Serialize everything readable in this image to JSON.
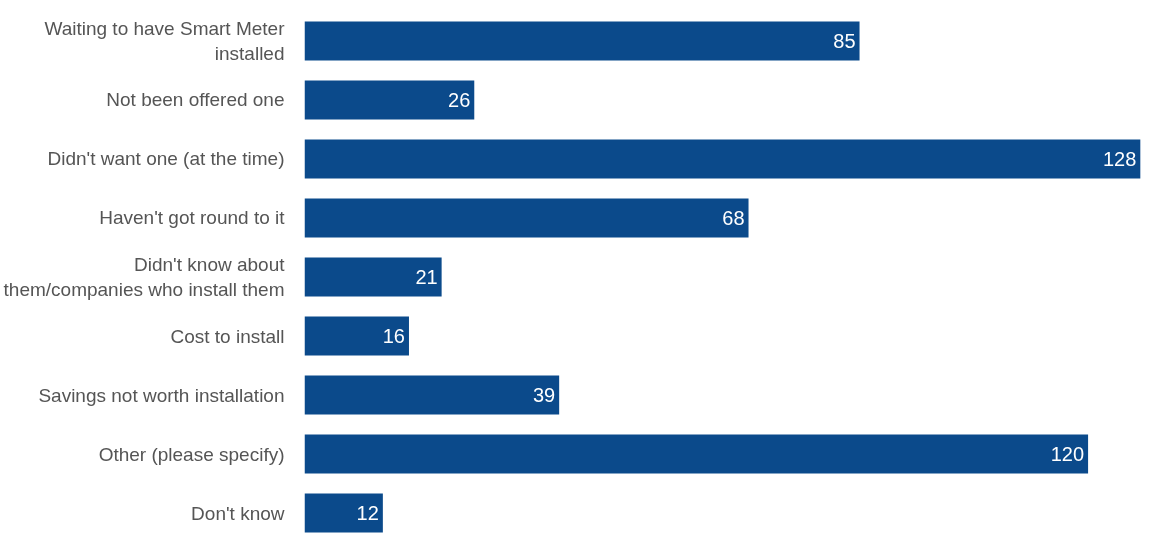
{
  "chart_data": {
    "type": "bar",
    "orientation": "horizontal",
    "categories": [
      "Waiting to have Smart Meter installed",
      "Not been offered one",
      "Didn't want one (at the time)",
      "Haven't got round to it",
      "Didn't know about them/companies who install them",
      "Cost to install",
      "Savings not worth installation",
      "Other (please specify)",
      "Don't know"
    ],
    "values": [
      85,
      26,
      128,
      68,
      21,
      16,
      39,
      120,
      12
    ],
    "color": "#0b4a8b",
    "data_labels": true
  }
}
